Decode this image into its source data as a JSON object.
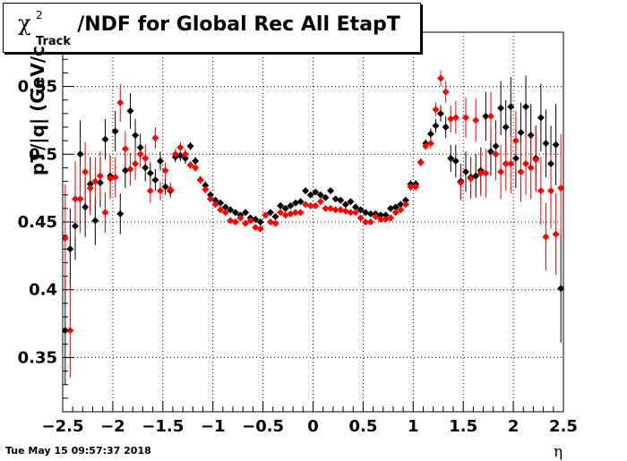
{
  "title": {
    "chi_symbol": "χ",
    "chi_superscript": "2",
    "chi_subscript": "Track",
    "rest": "/NDF for Global Rec All EtapT"
  },
  "footer": {
    "datestamp": "Tue May 15 09:57:37 2018"
  },
  "chart_data": {
    "type": "scatter",
    "title": "χ²_Track/NDF for Global Rec All EtapT",
    "xlabel": "η",
    "ylabel": "pT/|q| (GeV/c",
    "xlim": [
      -2.5,
      2.5
    ],
    "ylim": [
      0.31,
      0.59
    ],
    "xticks": [
      -2.5,
      -2,
      -1.5,
      -1,
      -0.5,
      0,
      0.5,
      1,
      1.5,
      2,
      2.5
    ],
    "xtick_labels": [
      "−2.5",
      "−2",
      "−1.5",
      "−1",
      "−0.5",
      "0",
      "0.5",
      "1",
      "1.5",
      "2",
      "2.5"
    ],
    "yticks": [
      0.35,
      0.4,
      0.45,
      0.5,
      0.55
    ],
    "ytick_labels": [
      "0.35",
      "0.4",
      "0.45",
      "0.5",
      "0.55"
    ],
    "grid": true,
    "series": [
      {
        "color": "#000000",
        "points": [
          [
            -2.475,
            0.37,
            0.04
          ],
          [
            -2.425,
            0.43,
            0.03
          ],
          [
            -2.375,
            0.447,
            0.025
          ],
          [
            -2.325,
            0.5,
            0.025
          ],
          [
            -2.275,
            0.461,
            0.022
          ],
          [
            -2.225,
            0.478,
            0.02
          ],
          [
            -2.175,
            0.451,
            0.018
          ],
          [
            -2.125,
            0.479,
            0.018
          ],
          [
            -2.075,
            0.511,
            0.015
          ],
          [
            -2.025,
            0.484,
            0.015
          ],
          [
            -1.975,
            0.517,
            0.015
          ],
          [
            -1.925,
            0.456,
            0.015
          ],
          [
            -1.875,
            0.488,
            0.013
          ],
          [
            -1.825,
            0.532,
            0.013
          ],
          [
            -1.775,
            0.514,
            0.012
          ],
          [
            -1.725,
            0.505,
            0.01
          ],
          [
            -1.675,
            0.49,
            0.01
          ],
          [
            -1.625,
            0.486,
            0.008
          ],
          [
            -1.575,
            0.481,
            0.008
          ],
          [
            -1.525,
            0.495,
            0.007
          ],
          [
            -1.475,
            0.476,
            0.006
          ],
          [
            -1.425,
            0.473,
            0.005
          ],
          [
            -1.375,
            0.498,
            0.004
          ],
          [
            -1.325,
            0.499,
            0.004
          ],
          [
            -1.275,
            0.497,
            0.004
          ],
          [
            -1.225,
            0.506,
            0.003
          ],
          [
            -1.175,
            0.495,
            0.003
          ],
          [
            -1.125,
            0.481,
            0.003
          ],
          [
            -1.075,
            0.477,
            0.003
          ],
          [
            -1.025,
            0.47,
            0.002
          ],
          [
            -0.975,
            0.466,
            0.002
          ],
          [
            -0.925,
            0.464,
            0.002
          ],
          [
            -0.875,
            0.461,
            0.002
          ],
          [
            -0.825,
            0.459,
            0.002
          ],
          [
            -0.775,
            0.457,
            0.002
          ],
          [
            -0.725,
            0.455,
            0.002
          ],
          [
            -0.675,
            0.457,
            0.002
          ],
          [
            -0.625,
            0.453,
            0.002
          ],
          [
            -0.575,
            0.452,
            0.002
          ],
          [
            -0.525,
            0.45,
            0.002
          ],
          [
            -0.475,
            0.455,
            0.002
          ],
          [
            -0.425,
            0.457,
            0.002
          ],
          [
            -0.375,
            0.454,
            0.002
          ],
          [
            -0.325,
            0.462,
            0.002
          ],
          [
            -0.275,
            0.46,
            0.002
          ],
          [
            -0.225,
            0.462,
            0.002
          ],
          [
            -0.175,
            0.464,
            0.002
          ],
          [
            -0.125,
            0.465,
            0.002
          ],
          [
            -0.075,
            0.473,
            0.002
          ],
          [
            -0.025,
            0.47,
            0.002
          ],
          [
            0.025,
            0.472,
            0.002
          ],
          [
            0.075,
            0.47,
            0.002
          ],
          [
            0.125,
            0.468,
            0.002
          ],
          [
            0.175,
            0.473,
            0.002
          ],
          [
            0.225,
            0.467,
            0.002
          ],
          [
            0.275,
            0.466,
            0.002
          ],
          [
            0.325,
            0.463,
            0.002
          ],
          [
            0.375,
            0.465,
            0.002
          ],
          [
            0.425,
            0.461,
            0.002
          ],
          [
            0.475,
            0.459,
            0.002
          ],
          [
            0.525,
            0.457,
            0.002
          ],
          [
            0.575,
            0.456,
            0.002
          ],
          [
            0.625,
            0.456,
            0.002
          ],
          [
            0.675,
            0.455,
            0.002
          ],
          [
            0.725,
            0.455,
            0.002
          ],
          [
            0.775,
            0.46,
            0.002
          ],
          [
            0.825,
            0.461,
            0.002
          ],
          [
            0.875,
            0.463,
            0.002
          ],
          [
            0.925,
            0.466,
            0.002
          ],
          [
            0.975,
            0.478,
            0.003
          ],
          [
            1.025,
            0.478,
            0.003
          ],
          [
            1.075,
            0.494,
            0.003
          ],
          [
            1.125,
            0.508,
            0.003
          ],
          [
            1.175,
            0.515,
            0.004
          ],
          [
            1.225,
            0.521,
            0.005
          ],
          [
            1.275,
            0.53,
            0.006
          ],
          [
            1.325,
            0.52,
            0.008
          ],
          [
            1.375,
            0.497,
            0.01
          ],
          [
            1.425,
            0.495,
            0.012
          ],
          [
            1.475,
            0.48,
            0.013
          ],
          [
            1.525,
            0.487,
            0.015
          ],
          [
            1.575,
            0.483,
            0.015
          ],
          [
            1.625,
            0.484,
            0.016
          ],
          [
            1.675,
            0.488,
            0.017
          ],
          [
            1.725,
            0.528,
            0.018
          ],
          [
            1.775,
            0.502,
            0.018
          ],
          [
            1.825,
            0.506,
            0.019
          ],
          [
            1.875,
            0.534,
            0.02
          ],
          [
            1.925,
            0.52,
            0.02
          ],
          [
            1.975,
            0.535,
            0.022
          ],
          [
            2.025,
            0.497,
            0.022
          ],
          [
            2.075,
            0.516,
            0.022
          ],
          [
            2.125,
            0.535,
            0.023
          ],
          [
            2.175,
            0.514,
            0.023
          ],
          [
            2.225,
            0.497,
            0.024
          ],
          [
            2.275,
            0.527,
            0.025
          ],
          [
            2.325,
            0.508,
            0.025
          ],
          [
            2.375,
            0.493,
            0.028
          ],
          [
            2.425,
            0.507,
            0.03
          ],
          [
            2.475,
            0.401,
            0.04
          ]
        ]
      },
      {
        "color": "#ff0000",
        "points": [
          [
            -2.475,
            0.438,
            0.04
          ],
          [
            -2.425,
            0.37,
            0.035
          ],
          [
            -2.375,
            0.467,
            0.028
          ],
          [
            -2.325,
            0.467,
            0.025
          ],
          [
            -2.275,
            0.487,
            0.022
          ],
          [
            -2.225,
            0.475,
            0.02
          ],
          [
            -2.175,
            0.48,
            0.018
          ],
          [
            -2.125,
            0.484,
            0.018
          ],
          [
            -2.075,
            0.457,
            0.015
          ],
          [
            -2.025,
            0.482,
            0.015
          ],
          [
            -1.975,
            0.483,
            0.015
          ],
          [
            -1.925,
            0.538,
            0.014
          ],
          [
            -1.875,
            0.504,
            0.013
          ],
          [
            -1.825,
            0.489,
            0.012
          ],
          [
            -1.775,
            0.493,
            0.012
          ],
          [
            -1.725,
            0.5,
            0.01
          ],
          [
            -1.675,
            0.497,
            0.01
          ],
          [
            -1.625,
            0.473,
            0.009
          ],
          [
            -1.575,
            0.512,
            0.008
          ],
          [
            -1.525,
            0.473,
            0.007
          ],
          [
            -1.475,
            0.488,
            0.006
          ],
          [
            -1.425,
            0.474,
            0.005
          ],
          [
            -1.375,
            0.5,
            0.004
          ],
          [
            -1.325,
            0.505,
            0.004
          ],
          [
            -1.275,
            0.5,
            0.004
          ],
          [
            -1.225,
            0.492,
            0.003
          ],
          [
            -1.175,
            0.49,
            0.003
          ],
          [
            -1.125,
            0.481,
            0.003
          ],
          [
            -1.075,
            0.474,
            0.003
          ],
          [
            -1.025,
            0.467,
            0.002
          ],
          [
            -0.975,
            0.463,
            0.002
          ],
          [
            -0.925,
            0.459,
            0.002
          ],
          [
            -0.875,
            0.457,
            0.002
          ],
          [
            -0.825,
            0.451,
            0.002
          ],
          [
            -0.775,
            0.45,
            0.002
          ],
          [
            -0.725,
            0.453,
            0.002
          ],
          [
            -0.675,
            0.449,
            0.002
          ],
          [
            -0.625,
            0.451,
            0.002
          ],
          [
            -0.575,
            0.446,
            0.002
          ],
          [
            -0.525,
            0.445,
            0.002
          ],
          [
            -0.475,
            0.455,
            0.002
          ],
          [
            -0.425,
            0.45,
            0.002
          ],
          [
            -0.375,
            0.449,
            0.002
          ],
          [
            -0.325,
            0.457,
            0.002
          ],
          [
            -0.275,
            0.455,
            0.002
          ],
          [
            -0.225,
            0.456,
            0.002
          ],
          [
            -0.175,
            0.457,
            0.002
          ],
          [
            -0.125,
            0.457,
            0.002
          ],
          [
            -0.075,
            0.463,
            0.002
          ],
          [
            -0.025,
            0.462,
            0.002
          ],
          [
            0.025,
            0.462,
            0.002
          ],
          [
            0.075,
            0.465,
            0.002
          ],
          [
            0.125,
            0.46,
            0.002
          ],
          [
            0.175,
            0.46,
            0.002
          ],
          [
            0.225,
            0.459,
            0.002
          ],
          [
            0.275,
            0.459,
            0.002
          ],
          [
            0.325,
            0.458,
            0.002
          ],
          [
            0.375,
            0.457,
            0.002
          ],
          [
            0.425,
            0.457,
            0.002
          ],
          [
            0.475,
            0.453,
            0.002
          ],
          [
            0.525,
            0.45,
            0.002
          ],
          [
            0.575,
            0.45,
            0.002
          ],
          [
            0.625,
            0.454,
            0.002
          ],
          [
            0.675,
            0.452,
            0.002
          ],
          [
            0.725,
            0.452,
            0.002
          ],
          [
            0.775,
            0.453,
            0.002
          ],
          [
            0.825,
            0.457,
            0.002
          ],
          [
            0.875,
            0.459,
            0.002
          ],
          [
            0.925,
            0.463,
            0.002
          ],
          [
            0.975,
            0.476,
            0.003
          ],
          [
            1.025,
            0.476,
            0.003
          ],
          [
            1.075,
            0.494,
            0.003
          ],
          [
            1.125,
            0.506,
            0.003
          ],
          [
            1.175,
            0.508,
            0.004
          ],
          [
            1.225,
            0.533,
            0.005
          ],
          [
            1.275,
            0.556,
            0.006
          ],
          [
            1.325,
            0.546,
            0.008
          ],
          [
            1.375,
            0.526,
            0.01
          ],
          [
            1.425,
            0.527,
            0.012
          ],
          [
            1.475,
            0.479,
            0.013
          ],
          [
            1.525,
            0.527,
            0.015
          ],
          [
            1.575,
            0.482,
            0.015
          ],
          [
            1.625,
            0.525,
            0.016
          ],
          [
            1.675,
            0.486,
            0.017
          ],
          [
            1.725,
            0.486,
            0.018
          ],
          [
            1.775,
            0.528,
            0.018
          ],
          [
            1.825,
            0.5,
            0.019
          ],
          [
            1.875,
            0.487,
            0.02
          ],
          [
            1.925,
            0.493,
            0.02
          ],
          [
            1.975,
            0.493,
            0.022
          ],
          [
            2.025,
            0.51,
            0.022
          ],
          [
            2.075,
            0.487,
            0.022
          ],
          [
            2.125,
            0.493,
            0.023
          ],
          [
            2.175,
            0.49,
            0.023
          ],
          [
            2.225,
            0.496,
            0.024
          ],
          [
            2.275,
            0.473,
            0.025
          ],
          [
            2.325,
            0.439,
            0.025
          ],
          [
            2.375,
            0.473,
            0.028
          ],
          [
            2.425,
            0.441,
            0.03
          ],
          [
            2.475,
            0.475,
            0.04
          ]
        ]
      }
    ]
  }
}
